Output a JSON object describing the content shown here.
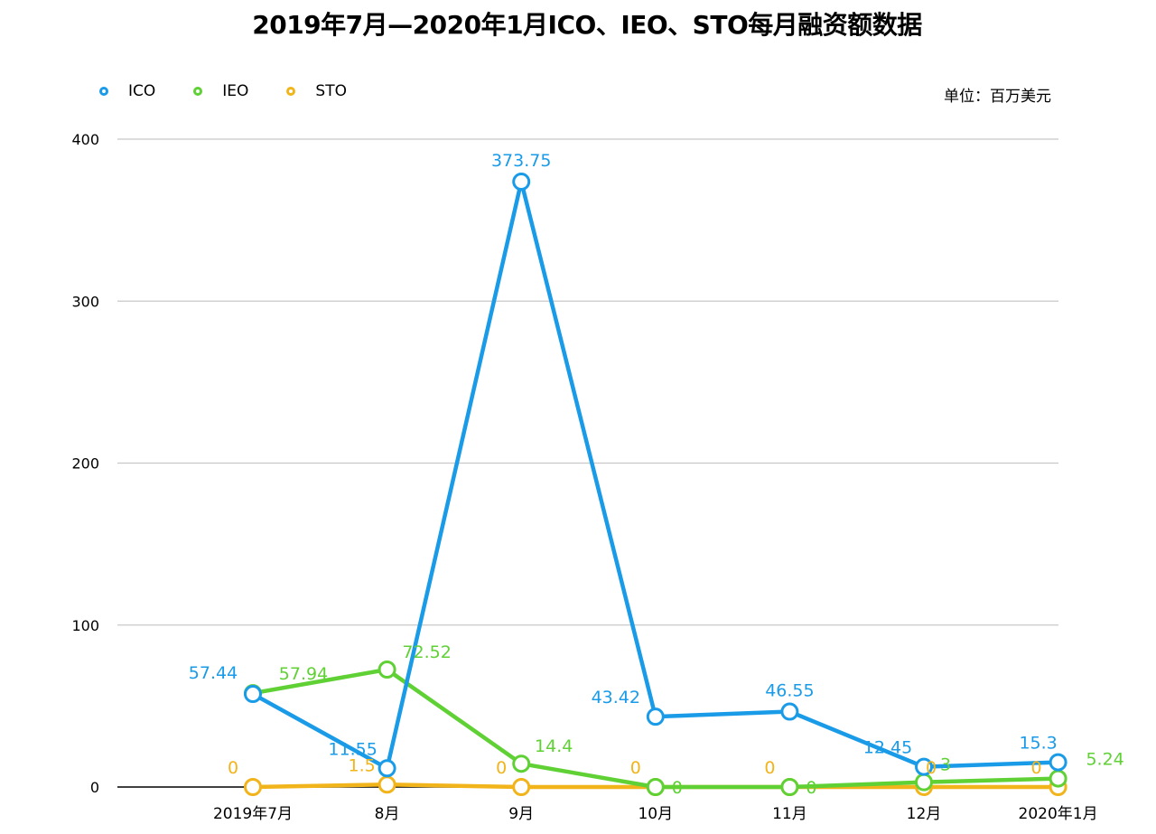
{
  "chart_data": {
    "type": "line",
    "title": "2019年7月—2020年1月ICO、IEO、STO每月融资额数据",
    "unit": "单位：百万美元",
    "categories": [
      "2019年7月",
      "8月",
      "9月",
      "10月",
      "11月",
      "12月",
      "2020年1月"
    ],
    "ylim": [
      0,
      400
    ],
    "yticks": [
      0,
      100,
      200,
      300,
      400
    ],
    "grid": true,
    "legend_position": "top-left",
    "series": [
      {
        "name": "ICO",
        "color": "#1a9be8",
        "values": [
          57.44,
          11.55,
          373.75,
          43.42,
          46.55,
          12.45,
          15.3
        ],
        "labels": [
          "57.44",
          "11.55",
          "373.75",
          "43.42",
          "46.55",
          "12.45",
          "15.3"
        ]
      },
      {
        "name": "IEO",
        "color": "#5fd135",
        "values": [
          57.94,
          72.52,
          14.4,
          0,
          0,
          3,
          5.24
        ],
        "labels": [
          "57.94",
          "72.52",
          "14.4",
          "0",
          "0",
          "3",
          "5.24"
        ]
      },
      {
        "name": "STO",
        "color": "#f1b41a",
        "values": [
          0,
          1.5,
          0,
          0,
          0,
          0,
          0
        ],
        "labels": [
          "0",
          "1.5",
          "0",
          "0",
          "0",
          "0",
          "0"
        ]
      }
    ]
  }
}
